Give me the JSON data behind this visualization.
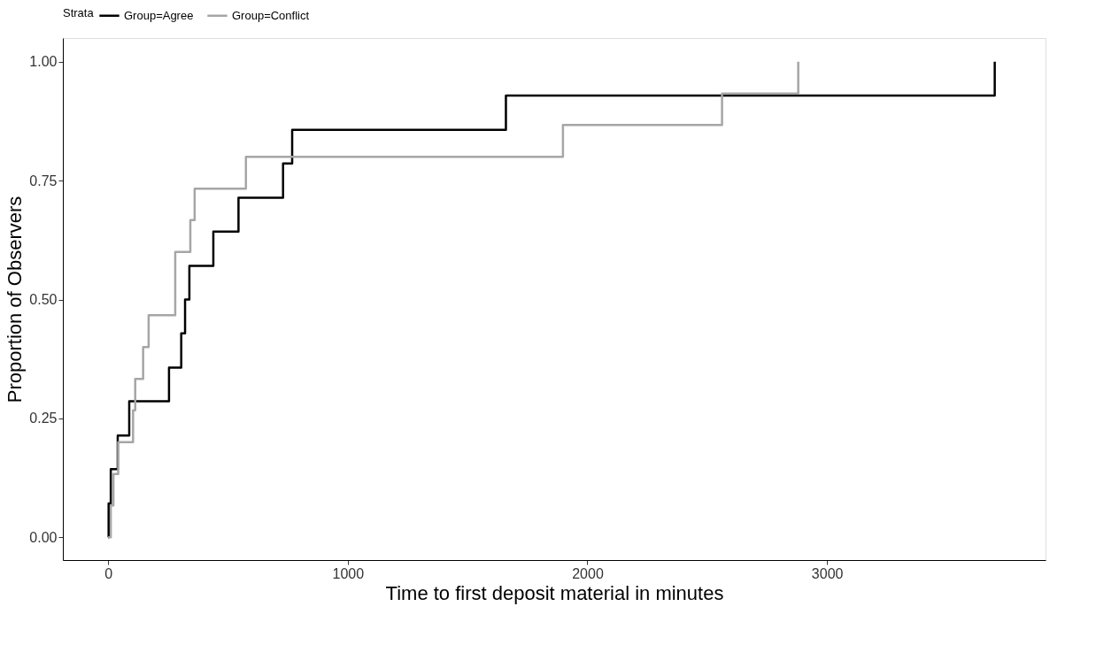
{
  "chart_data": {
    "type": "step",
    "xlabel": "Time to first deposit material in minutes",
    "ylabel": "Proportion of Observers",
    "legend_title": "Strata",
    "legend": "top",
    "grid": false,
    "marker": "none",
    "line_style": "solid",
    "xlim": [
      -189,
      3912
    ],
    "xticks": [
      0,
      1000,
      2000,
      3000
    ],
    "ylim": [
      -0.048,
      1.05
    ],
    "yticks": [
      {
        "value": 0,
        "label": "0.00"
      },
      {
        "value": 0.25,
        "label": "0.25"
      },
      {
        "value": 0.5,
        "label": "0.50"
      },
      {
        "value": 0.75,
        "label": "0.75"
      },
      {
        "value": 1,
        "label": "1.00"
      }
    ],
    "series": [
      {
        "name": "Group=Agree",
        "color": "#000000",
        "x": [
          0,
          2,
          11,
          40,
          88,
          254,
          305,
          321,
          339,
          439,
          544,
          730,
          768,
          1660,
          3700
        ],
        "values": [
          0,
          0.071,
          0.143,
          0.214,
          0.286,
          0.357,
          0.429,
          0.5,
          0.571,
          0.643,
          0.714,
          0.786,
          0.857,
          0.929,
          1.0
        ]
      },
      {
        "name": "Group=Conflict",
        "color": "#a6a6a6",
        "x": [
          0,
          11,
          22,
          42,
          104,
          113,
          146,
          169,
          280,
          343,
          361,
          575,
          1898,
          2562,
          2880
        ],
        "values": [
          0,
          0.067,
          0.133,
          0.2,
          0.267,
          0.333,
          0.4,
          0.467,
          0.6,
          0.667,
          0.733,
          0.8,
          0.867,
          0.933,
          1.0
        ]
      }
    ]
  }
}
